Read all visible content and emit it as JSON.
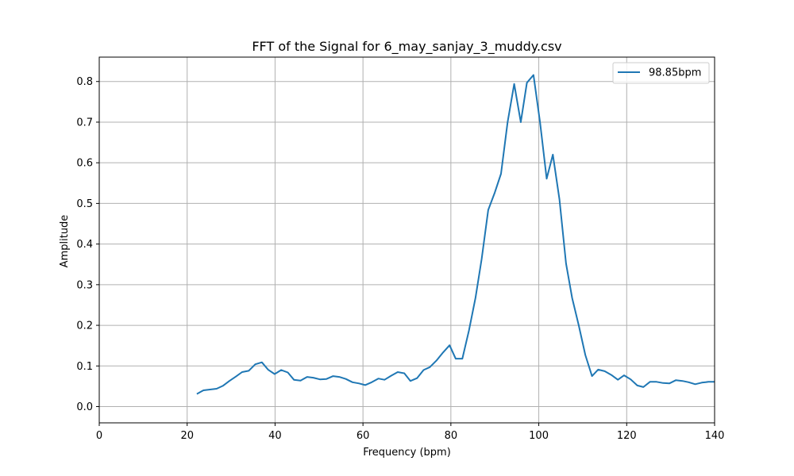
{
  "chart_data": {
    "type": "line",
    "title": "FFT of the Signal for 6_may_sanjay_3_muddy.csv",
    "xlabel": "Frequency (bpm)",
    "ylabel": "Amplitude",
    "xlim": [
      0,
      140
    ],
    "ylim": [
      -0.04,
      0.86
    ],
    "xticks": [
      0,
      20,
      40,
      60,
      80,
      100,
      120,
      140
    ],
    "xtick_labels": [
      "0",
      "20",
      "40",
      "60",
      "80",
      "100",
      "120",
      "140"
    ],
    "yticks": [
      0.0,
      0.1,
      0.2,
      0.3,
      0.4,
      0.5,
      0.6,
      0.7,
      0.8
    ],
    "ytick_labels": [
      "0.0",
      "0.1",
      "0.2",
      "0.3",
      "0.4",
      "0.5",
      "0.6",
      "0.7",
      "0.8"
    ],
    "grid": true,
    "legend_position": "top-right",
    "colors": {
      "series": "#1f77b4",
      "grid": "#b0b0b0"
    },
    "series": [
      {
        "name": "98.85bpm",
        "x": [
          22.2,
          23.7,
          25.2,
          26.7,
          28.1,
          29.6,
          31.1,
          32.5,
          34.0,
          35.5,
          37.0,
          38.4,
          39.9,
          41.4,
          42.9,
          44.3,
          45.8,
          47.3,
          48.7,
          50.2,
          51.7,
          53.2,
          54.6,
          56.1,
          57.6,
          59.1,
          60.5,
          62.0,
          63.5,
          64.9,
          66.4,
          67.9,
          69.4,
          70.8,
          72.3,
          73.8,
          75.2,
          76.7,
          78.2,
          79.7,
          81.1,
          82.6,
          84.1,
          85.6,
          87.0,
          88.5,
          90.0,
          91.4,
          92.9,
          94.4,
          95.9,
          97.3,
          98.8,
          100.3,
          101.8,
          103.2,
          104.7,
          106.2,
          107.6,
          109.1,
          110.6,
          112.1,
          113.5,
          115.0,
          116.5,
          118.0,
          119.4,
          120.9,
          122.4,
          123.8,
          125.3,
          126.8,
          128.3,
          129.7,
          131.2,
          132.7,
          134.1,
          135.6,
          137.1,
          138.6,
          140.0
        ],
        "y": [
          0.031,
          0.04,
          0.042,
          0.044,
          0.051,
          0.063,
          0.074,
          0.085,
          0.088,
          0.104,
          0.109,
          0.091,
          0.08,
          0.09,
          0.084,
          0.066,
          0.064,
          0.073,
          0.071,
          0.067,
          0.068,
          0.075,
          0.073,
          0.068,
          0.06,
          0.057,
          0.053,
          0.06,
          0.069,
          0.066,
          0.076,
          0.085,
          0.082,
          0.063,
          0.07,
          0.09,
          0.097,
          0.113,
          0.133,
          0.151,
          0.118,
          0.118,
          0.187,
          0.268,
          0.363,
          0.484,
          0.527,
          0.573,
          0.7,
          0.794,
          0.7,
          0.797,
          0.816,
          0.699,
          0.561,
          0.62,
          0.51,
          0.352,
          0.267,
          0.2,
          0.127,
          0.075,
          0.091,
          0.087,
          0.078,
          0.066,
          0.077,
          0.067,
          0.052,
          0.048,
          0.061,
          0.061,
          0.058,
          0.057,
          0.065,
          0.063,
          0.06,
          0.055,
          0.059,
          0.061,
          0.061
        ]
      }
    ]
  }
}
